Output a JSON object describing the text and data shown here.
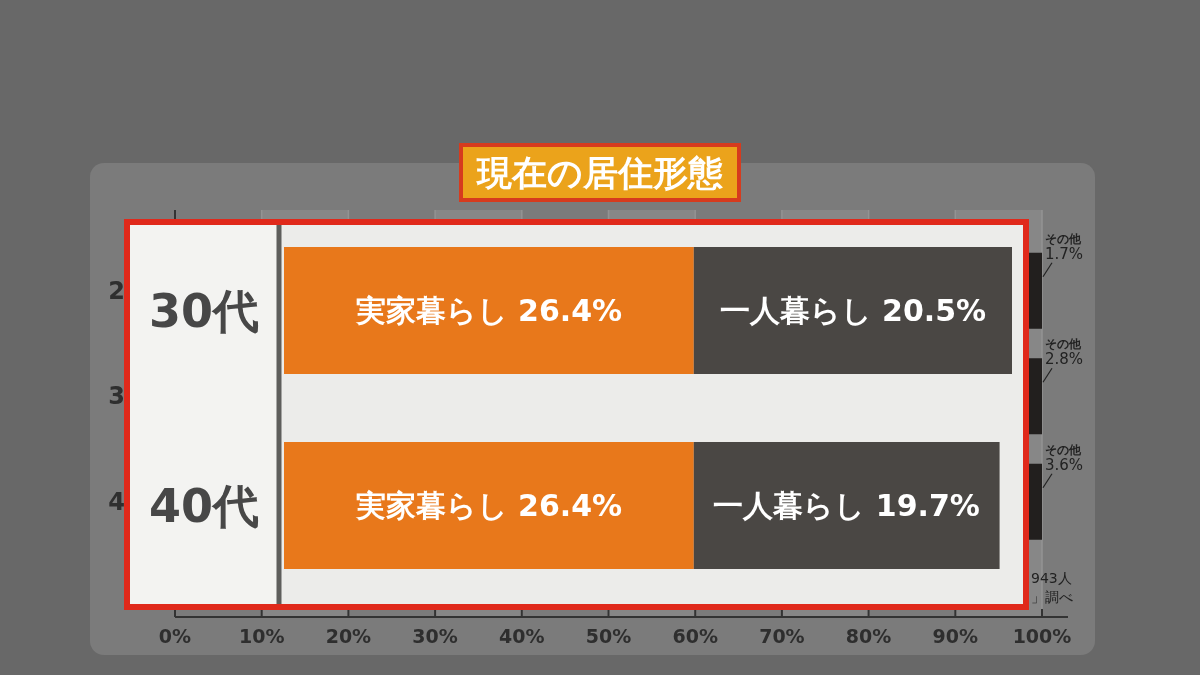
{
  "chart_data": [
    {
      "type": "bar",
      "orientation": "horizontal",
      "title": "現在の居住形態",
      "categories": [
        "2",
        "3",
        "4"
      ],
      "series": [
        {
          "name": "その他",
          "color": "#221f1e",
          "values": [
            1.7,
            2.8,
            3.6
          ],
          "base": [
            98.3,
            97.2,
            96.4
          ],
          "value_labels": [
            "1.7%",
            "2.8%",
            "3.6%"
          ]
        }
      ],
      "xlim": [
        0,
        100
      ],
      "xticks": [
        {
          "value": 0,
          "label": "0%"
        },
        {
          "value": 10,
          "label": "10%"
        },
        {
          "value": 20,
          "label": "20%"
        },
        {
          "value": 30,
          "label": "30%"
        },
        {
          "value": 40,
          "label": "40%"
        },
        {
          "value": 50,
          "label": "50%"
        },
        {
          "value": 60,
          "label": "60%"
        },
        {
          "value": 70,
          "label": "70%"
        },
        {
          "value": 80,
          "label": "80%"
        },
        {
          "value": 90,
          "label": "90%"
        },
        {
          "value": 100,
          "label": "100%"
        }
      ],
      "grid": "x",
      "annotations": [
        "943人",
        "」調べ"
      ]
    },
    {
      "type": "bar",
      "orientation": "horizontal",
      "stacked": true,
      "categories": [
        "30代",
        "40代"
      ],
      "series": [
        {
          "color": "#e8781b",
          "values": [
            26.4,
            26.4
          ],
          "value_labels": [
            "実家暮らし 26.4%",
            "実家暮らし 26.4%"
          ]
        },
        {
          "color": "#4a4744",
          "values": [
            20.5,
            19.7
          ],
          "value_labels": [
            "一人暮らし 20.5%",
            "一人暮らし 19.7%"
          ]
        }
      ]
    }
  ]
}
